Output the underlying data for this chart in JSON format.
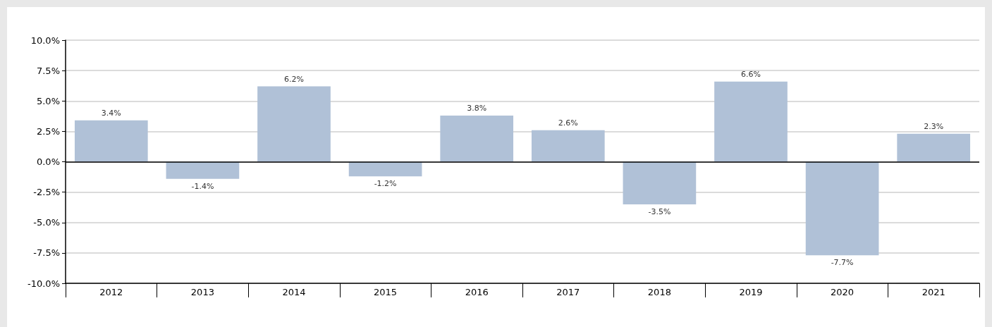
{
  "chart_data": {
    "type": "bar",
    "categories": [
      "2012",
      "2013",
      "2014",
      "2015",
      "2016",
      "2017",
      "2018",
      "2019",
      "2020",
      "2021"
    ],
    "series": [
      {
        "color": "#b0c1d7",
        "values": [
          3.4,
          -1.4,
          6.2,
          -1.2,
          3.8,
          2.6,
          -3.5,
          6.6,
          -7.7,
          2.3
        ],
        "value_labels": [
          "3.4%",
          "-1.4%",
          "6.2%",
          "-1.2%",
          "3.8%",
          "2.6%",
          "-3.5%",
          "6.6%",
          "-7.7%",
          "2.3%"
        ]
      }
    ],
    "ylim": [
      -10,
      10
    ],
    "yticks": [
      {
        "value": -10,
        "label": "-10.0%"
      },
      {
        "value": -7.5,
        "label": "-7.5%"
      },
      {
        "value": -5,
        "label": "-5.0%"
      },
      {
        "value": -2.5,
        "label": "-2.5%"
      },
      {
        "value": 0,
        "label": "0.0%"
      },
      {
        "value": 2.5,
        "label": "2.5%"
      },
      {
        "value": 5,
        "label": "5.0%"
      },
      {
        "value": 7.5,
        "label": "7.5%"
      },
      {
        "value": 10,
        "label": "10.0%"
      }
    ],
    "grid": "y",
    "ref_lines": [
      {
        "axis": "y",
        "value": 0,
        "color": "#000000"
      }
    ]
  }
}
